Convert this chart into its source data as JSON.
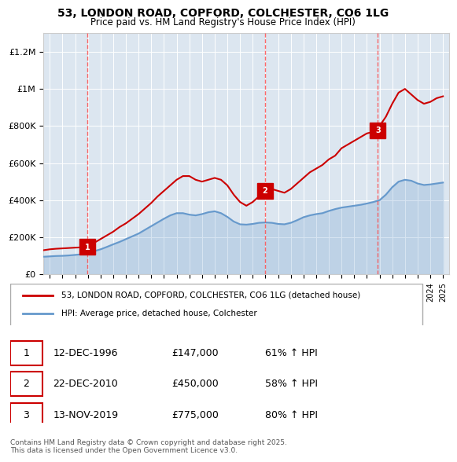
{
  "title": "53, LONDON ROAD, COPFORD, COLCHESTER, CO6 1LG",
  "subtitle": "Price paid vs. HM Land Registry's House Price Index (HPI)",
  "hpi_label": "HPI: Average price, detached house, Colchester",
  "property_label": "53, LONDON ROAD, COPFORD, COLCHESTER, CO6 1LG (detached house)",
  "footer": "Contains HM Land Registry data © Crown copyright and database right 2025.\nThis data is licensed under the Open Government Licence v3.0.",
  "sales": [
    {
      "num": 1,
      "date": "12-DEC-1996",
      "price": 147000,
      "x": 1996.95
    },
    {
      "num": 2,
      "date": "22-DEC-2010",
      "price": 450000,
      "x": 2010.97
    },
    {
      "num": 3,
      "date": "13-NOV-2019",
      "price": 775000,
      "x": 2019.87
    }
  ],
  "property_color": "#cc0000",
  "hpi_color": "#6699cc",
  "vline_color": "#ff4444",
  "background_color": "#dce6f0",
  "ylim": [
    0,
    1300000
  ],
  "xlim": [
    1993.5,
    2025.5
  ],
  "property_line": {
    "x": [
      1993.5,
      1994.0,
      1994.5,
      1995.0,
      1995.5,
      1996.0,
      1996.95,
      1997.5,
      1998.0,
      1998.5,
      1999.0,
      1999.5,
      2000.0,
      2000.5,
      2001.0,
      2001.5,
      2002.0,
      2002.5,
      2003.0,
      2003.5,
      2004.0,
      2004.5,
      2005.0,
      2005.5,
      2006.0,
      2006.5,
      2007.0,
      2007.5,
      2008.0,
      2008.5,
      2009.0,
      2009.5,
      2010.0,
      2010.97,
      2011.5,
      2012.0,
      2012.5,
      2013.0,
      2013.5,
      2014.0,
      2014.5,
      2015.0,
      2015.5,
      2016.0,
      2016.5,
      2017.0,
      2017.5,
      2018.0,
      2018.5,
      2019.0,
      2019.87,
      2020.0,
      2020.5,
      2021.0,
      2021.5,
      2022.0,
      2022.5,
      2023.0,
      2023.5,
      2024.0,
      2024.5,
      2025.0
    ],
    "y": [
      130000,
      135000,
      138000,
      140000,
      142000,
      144000,
      147000,
      170000,
      190000,
      210000,
      230000,
      255000,
      275000,
      300000,
      325000,
      355000,
      385000,
      420000,
      450000,
      480000,
      510000,
      530000,
      530000,
      510000,
      500000,
      510000,
      520000,
      510000,
      480000,
      430000,
      390000,
      370000,
      390000,
      450000,
      460000,
      450000,
      440000,
      460000,
      490000,
      520000,
      550000,
      570000,
      590000,
      620000,
      640000,
      680000,
      700000,
      720000,
      740000,
      760000,
      775000,
      800000,
      850000,
      920000,
      980000,
      1000000,
      970000,
      940000,
      920000,
      930000,
      950000,
      960000
    ]
  },
  "hpi_line": {
    "x": [
      1993.5,
      1994.0,
      1994.5,
      1995.0,
      1995.5,
      1996.0,
      1996.5,
      1997.0,
      1997.5,
      1998.0,
      1998.5,
      1999.0,
      1999.5,
      2000.0,
      2000.5,
      2001.0,
      2001.5,
      2002.0,
      2002.5,
      2003.0,
      2003.5,
      2004.0,
      2004.5,
      2005.0,
      2005.5,
      2006.0,
      2006.5,
      2007.0,
      2007.5,
      2008.0,
      2008.5,
      2009.0,
      2009.5,
      2010.0,
      2010.5,
      2011.0,
      2011.5,
      2012.0,
      2012.5,
      2013.0,
      2013.5,
      2014.0,
      2014.5,
      2015.0,
      2015.5,
      2016.0,
      2016.5,
      2017.0,
      2017.5,
      2018.0,
      2018.5,
      2019.0,
      2019.5,
      2020.0,
      2020.5,
      2021.0,
      2021.5,
      2022.0,
      2022.5,
      2023.0,
      2023.5,
      2024.0,
      2024.5,
      2025.0
    ],
    "y": [
      95000,
      97000,
      99000,
      100000,
      102000,
      105000,
      108000,
      115000,
      125000,
      135000,
      148000,
      162000,
      175000,
      190000,
      205000,
      220000,
      240000,
      260000,
      280000,
      300000,
      318000,
      330000,
      330000,
      322000,
      318000,
      325000,
      335000,
      340000,
      330000,
      310000,
      285000,
      270000,
      268000,
      272000,
      278000,
      280000,
      278000,
      272000,
      270000,
      278000,
      292000,
      308000,
      318000,
      325000,
      330000,
      342000,
      352000,
      360000,
      365000,
      370000,
      375000,
      382000,
      390000,
      400000,
      430000,
      470000,
      500000,
      510000,
      505000,
      490000,
      482000,
      485000,
      490000,
      495000
    ]
  }
}
